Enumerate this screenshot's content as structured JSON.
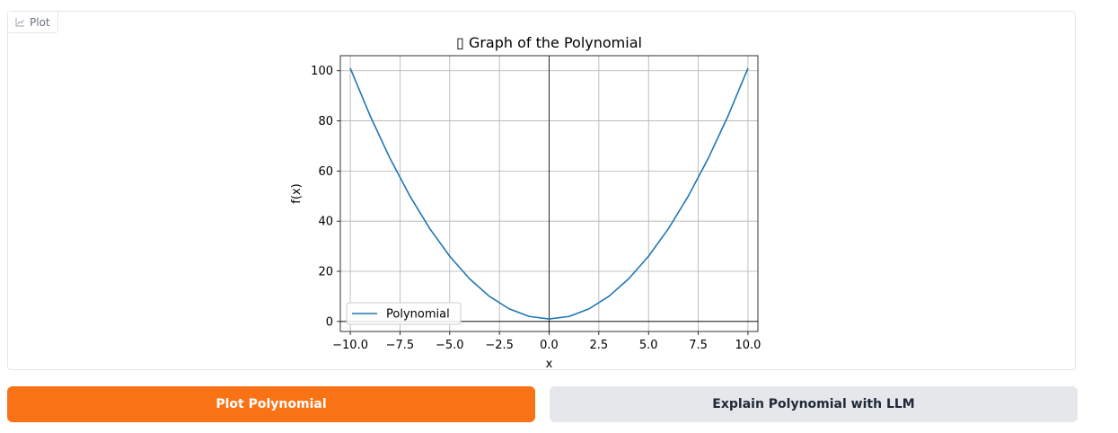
{
  "plot_panel": {
    "label": "Plot",
    "icon": "chart-icon"
  },
  "chart_data": {
    "type": "line",
    "title": "▯ Graph of the Polynomial",
    "xlabel": "x",
    "ylabel": "f(x)",
    "xlim": [
      -10.5,
      10.5
    ],
    "ylim": [
      -4,
      106
    ],
    "x_ticks": [
      -10.0,
      -7.5,
      -5.0,
      -2.5,
      0.0,
      2.5,
      5.0,
      7.5,
      10.0
    ],
    "x_tick_labels": [
      "−10.0",
      "−7.5",
      "−5.0",
      "−2.5",
      "0.0",
      "2.5",
      "5.0",
      "7.5",
      "10.0"
    ],
    "y_ticks": [
      0,
      20,
      40,
      60,
      80,
      100
    ],
    "y_tick_labels": [
      "0",
      "20",
      "40",
      "60",
      "80",
      "100"
    ],
    "grid": true,
    "legend_position": "lower-left",
    "series": [
      {
        "name": "Polynomial",
        "color": "#1f77b4",
        "x": [
          -10,
          -9,
          -8,
          -7,
          -6,
          -5,
          -4,
          -3,
          -2,
          -1,
          0,
          1,
          2,
          3,
          4,
          5,
          6,
          7,
          8,
          9,
          10
        ],
        "y": [
          101,
          82,
          65,
          50,
          37,
          26,
          17,
          10,
          5,
          2,
          1,
          2,
          5,
          10,
          17,
          26,
          37,
          50,
          65,
          82,
          101
        ]
      }
    ]
  },
  "actions": {
    "plot_label": "Plot Polynomial",
    "explain_label": "Explain Polynomial with LLM"
  },
  "colors": {
    "primary": "#f97316",
    "secondary": "#e5e7eb"
  }
}
